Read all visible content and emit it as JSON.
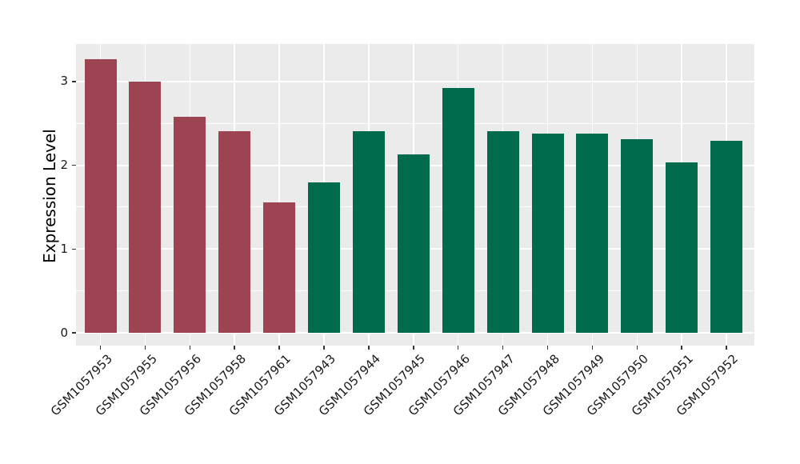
{
  "figure": {
    "background": "#ffffff",
    "panel_background": "#ebebeb",
    "grid_color": "#ffffff",
    "tick_color": "#333333",
    "text_color": "#1a1a1a",
    "bar_color_group1": "#9c4452",
    "bar_color_group2": "#006b4c"
  },
  "chart_data": {
    "type": "bar",
    "title": "",
    "xlabel": "",
    "ylabel": "Expression Level",
    "ylim": [
      0,
      3.45
    ],
    "yticks_major": [
      0,
      1,
      2,
      3
    ],
    "yticks_minor": [
      0.5,
      1.5,
      2.5,
      3.5
    ],
    "grid": true,
    "legend_position": "none",
    "categories": [
      "GSM1057953",
      "GSM1057955",
      "GSM1057956",
      "GSM1057958",
      "GSM1057961",
      "GSM1057943",
      "GSM1057944",
      "GSM1057945",
      "GSM1057946",
      "GSM1057947",
      "GSM1057948",
      "GSM1057949",
      "GSM1057950",
      "GSM1057951",
      "GSM1057952"
    ],
    "values": [
      3.27,
      3.0,
      2.58,
      2.41,
      1.56,
      1.8,
      2.41,
      2.13,
      2.92,
      2.41,
      2.38,
      2.38,
      2.31,
      2.03,
      2.29
    ],
    "bar_colors": [
      "#9c4452",
      "#9c4452",
      "#9c4452",
      "#9c4452",
      "#9c4452",
      "#006b4c",
      "#006b4c",
      "#006b4c",
      "#006b4c",
      "#006b4c",
      "#006b4c",
      "#006b4c",
      "#006b4c",
      "#006b4c",
      "#006b4c"
    ]
  }
}
